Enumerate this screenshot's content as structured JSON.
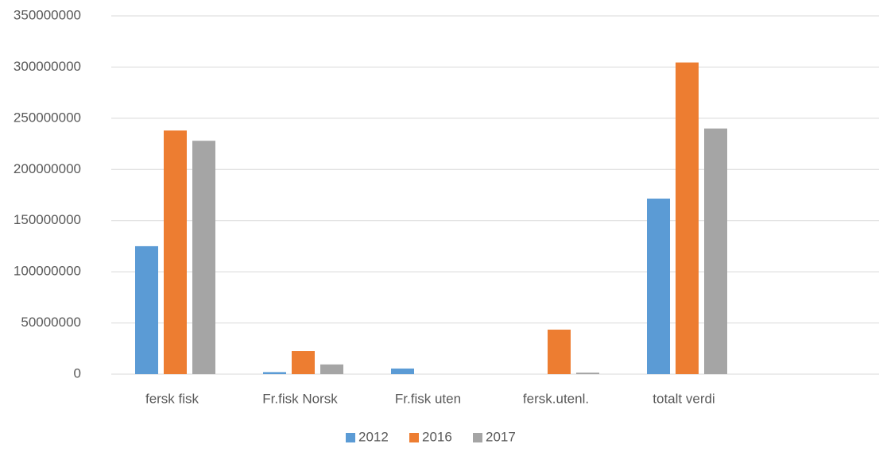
{
  "chart_data": {
    "type": "bar",
    "categories": [
      "fersk fisk",
      "Fr.fisk Norsk",
      "Fr.fisk uten",
      "fersk.utenl.",
      "totalt verdi",
      null
    ],
    "series": [
      {
        "name": "2012",
        "color": "#5b9bd5",
        "values": [
          125000000,
          2000000,
          5500000,
          0,
          171500000,
          null
        ]
      },
      {
        "name": "2016",
        "color": "#ed7d31",
        "values": [
          238000000,
          22500000,
          0,
          43500000,
          304500000,
          null
        ]
      },
      {
        "name": "2017",
        "color": "#a5a5a5",
        "values": [
          228000000,
          9500000,
          0,
          1500000,
          240000000,
          null
        ]
      }
    ],
    "ylim": [
      0,
      350000000
    ],
    "yticks": [
      0,
      50000000,
      100000000,
      150000000,
      200000000,
      250000000,
      300000000,
      350000000
    ],
    "grid": true,
    "legend": "bottom"
  }
}
